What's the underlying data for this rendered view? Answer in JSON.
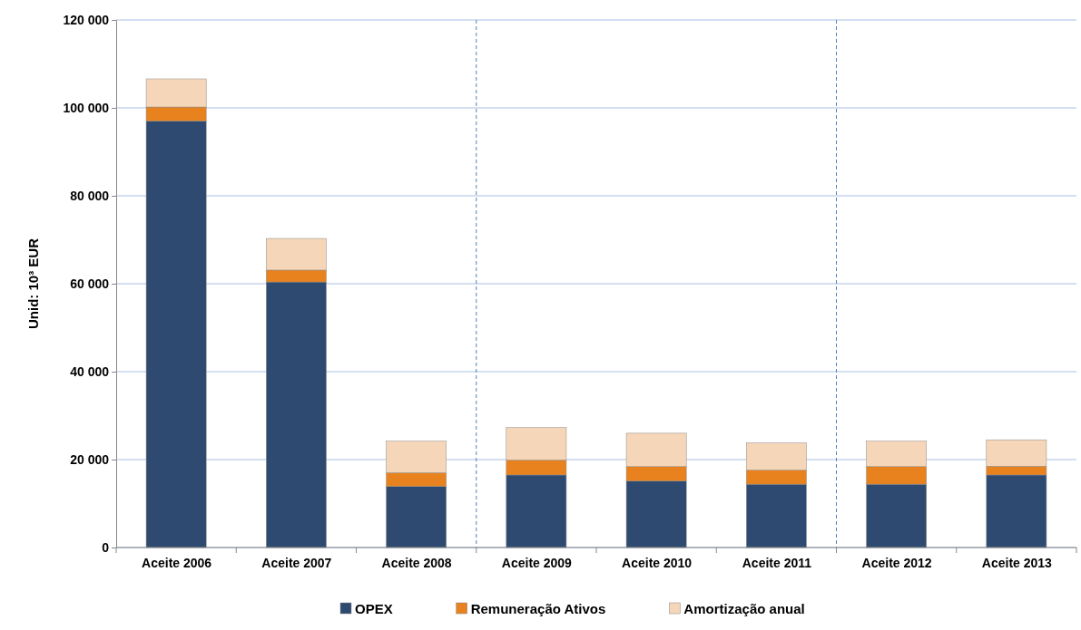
{
  "chart_data": {
    "type": "bar",
    "stacked": true,
    "ylabel": "Unid: 10³ EUR",
    "categories": [
      "Aceite 2006",
      "Aceite 2007",
      "Aceite 2008",
      "Aceite 2009",
      "Aceite 2010",
      "Aceite 2011",
      "Aceite 2012",
      "Aceite 2013"
    ],
    "series": [
      {
        "name": "OPEX",
        "color": "#2e4a70",
        "values": [
          97000,
          60400,
          13900,
          16500,
          15100,
          14400,
          14400,
          16500
        ]
      },
      {
        "name": "Remuneração Ativos",
        "color": "#e8821e",
        "values": [
          3200,
          2700,
          3100,
          3400,
          3300,
          3200,
          4000,
          2000
        ]
      },
      {
        "name": "Amortização anual",
        "color": "#f6d6b8",
        "values": [
          6400,
          7200,
          7200,
          7400,
          7600,
          6200,
          5800,
          6000
        ]
      }
    ],
    "ylim": [
      0,
      120000
    ],
    "yticks": [
      {
        "value": 0,
        "label": "0"
      },
      {
        "value": 20000,
        "label": "20 000"
      },
      {
        "value": 40000,
        "label": "40 000"
      },
      {
        "value": 60000,
        "label": "60 000"
      },
      {
        "value": 80000,
        "label": "80 000"
      },
      {
        "value": 100000,
        "label": "100 000"
      },
      {
        "value": 120000,
        "label": "120 000"
      }
    ],
    "grid": "y",
    "legend": "bottom"
  }
}
